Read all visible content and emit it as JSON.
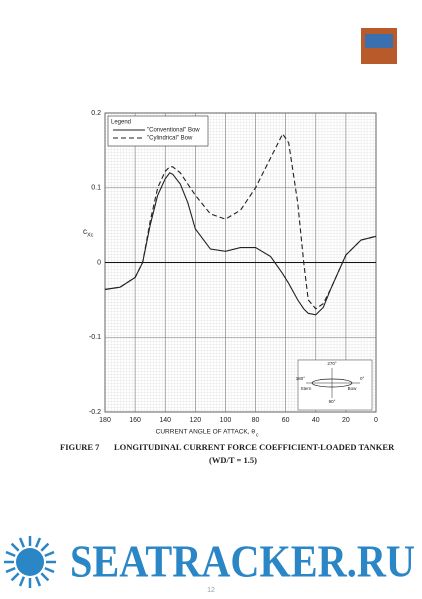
{
  "chart_data": {
    "type": "line",
    "y_label": "c",
    "y_label_sub": "Xc",
    "x_label": "CURRENT ANGLE OF ATTACK, θ",
    "x_label_sub": "c",
    "legend_title": "Legend",
    "legend": "upper left",
    "grid": true,
    "x": [
      180,
      170,
      160,
      155,
      150,
      145,
      140,
      137,
      135,
      130,
      125,
      120,
      110,
      100,
      90,
      80,
      70,
      62,
      58,
      52,
      48,
      45,
      40,
      35,
      30,
      20,
      10,
      0
    ],
    "series": [
      {
        "name": "\"Conventional\" Bow",
        "color": "#222222",
        "dash": false,
        "values": [
          -0.036,
          -0.033,
          -0.02,
          0.0,
          0.05,
          0.09,
          0.112,
          0.12,
          0.118,
          0.105,
          0.08,
          0.045,
          0.018,
          0.015,
          0.02,
          0.02,
          0.008,
          -0.015,
          -0.028,
          -0.05,
          -0.062,
          -0.068,
          -0.07,
          -0.06,
          -0.035,
          0.01,
          0.03,
          0.035
        ]
      },
      {
        "name": "\"Cylindrical\" Bow",
        "color": "#222222",
        "dash": true,
        "values": [
          -0.036,
          -0.033,
          -0.02,
          0.0,
          0.055,
          0.1,
          0.122,
          0.128,
          0.128,
          0.12,
          0.105,
          0.09,
          0.065,
          0.058,
          0.07,
          0.1,
          0.14,
          0.172,
          0.16,
          0.08,
          0.0,
          -0.05,
          -0.062,
          -0.055,
          -0.035,
          0.01,
          0.03,
          0.035
        ]
      }
    ],
    "xlim": [
      180,
      0
    ],
    "xticks": [
      180,
      160,
      140,
      120,
      100,
      80,
      60,
      40,
      20,
      0
    ],
    "ylim": [
      -0.2,
      0.2
    ],
    "yticks": [
      -0.2,
      -0.1,
      0,
      0.1,
      0.2
    ]
  },
  "diagram": {
    "labels": [
      "270°",
      "180°",
      "90°",
      "0°",
      "Stern",
      "Bow"
    ]
  },
  "caption": {
    "figure": "FIGURE 7",
    "title": "LONGITUDINAL CURRENT FORCE COEFFICIENT-LOADED TANKER",
    "subtitle": "(WD/T = 1.5)"
  },
  "watermark": "SEATRACKER.RU",
  "page_number": "12"
}
